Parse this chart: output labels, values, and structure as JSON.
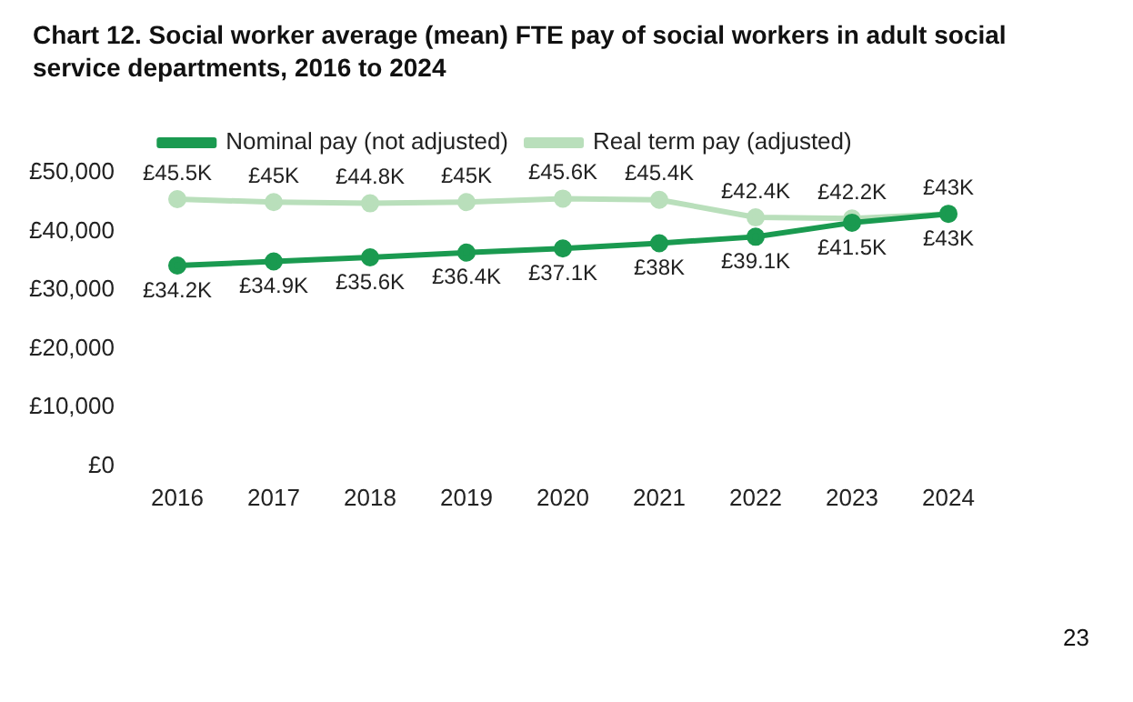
{
  "chart_data": {
    "type": "line",
    "title": "Chart 12. Social worker average (mean) FTE pay of social workers in adult social service departments, 2016 to 2024",
    "categories": [
      "2016",
      "2017",
      "2018",
      "2019",
      "2020",
      "2021",
      "2022",
      "2023",
      "2024"
    ],
    "series": [
      {
        "name": "Nominal pay (not adjusted)",
        "color": "#1a9a50",
        "values": [
          34200,
          34900,
          35600,
          36400,
          37100,
          38000,
          39100,
          41500,
          43000
        ],
        "value_labels": [
          "£34.2K",
          "£34.9K",
          "£35.6K",
          "£36.4K",
          "£37.1K",
          "£38K",
          "£39.1K",
          "£41.5K",
          "£43K"
        ]
      },
      {
        "name": "Real term pay (adjusted)",
        "color": "#b9dfbb",
        "values": [
          45500,
          45000,
          44800,
          45000,
          45600,
          45400,
          42400,
          42200,
          43000
        ],
        "value_labels": [
          "£45.5K",
          "£45K",
          "£44.8K",
          "£45K",
          "£45.6K",
          "£45.4K",
          "£42.4K",
          "£42.2K",
          "£43K"
        ]
      }
    ],
    "ylim": [
      0,
      50000
    ],
    "yticks": [
      {
        "value": 0,
        "label": "£0"
      },
      {
        "value": 10000,
        "label": "£10,000"
      },
      {
        "value": 20000,
        "label": "£20,000"
      },
      {
        "value": 30000,
        "label": "£30,000"
      },
      {
        "value": 40000,
        "label": "£40,000"
      },
      {
        "value": 50000,
        "label": "£50,000"
      }
    ],
    "grid": false,
    "legend": "top",
    "marker": "circle",
    "line_style": "solid",
    "annotations": [
      "23"
    ]
  }
}
